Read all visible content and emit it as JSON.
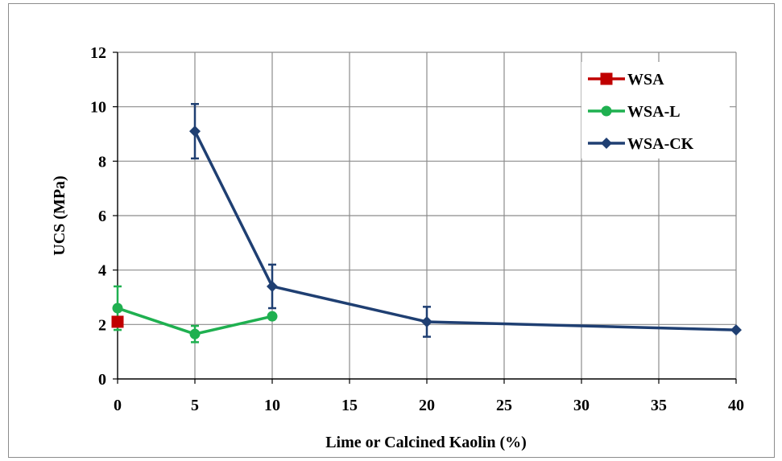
{
  "chart_data": {
    "type": "line",
    "xlabel": "Lime or Calcined Kaolin (%)",
    "ylabel": "UCS (MPa)",
    "xlim": [
      0,
      40
    ],
    "ylim": [
      0,
      12
    ],
    "x_ticks": [
      0,
      5,
      10,
      15,
      20,
      25,
      30,
      35,
      40
    ],
    "y_ticks": [
      0,
      2,
      4,
      6,
      8,
      10,
      12
    ],
    "grid": true,
    "legend": "top-right",
    "series": [
      {
        "name": "WSA",
        "color": "#c00000",
        "marker": "square",
        "x": [
          0
        ],
        "y": [
          2.1
        ],
        "err": [
          null
        ]
      },
      {
        "name": "WSA-L",
        "color": "#1fb050",
        "marker": "circle",
        "x": [
          0,
          5,
          10
        ],
        "y": [
          2.6,
          1.65,
          2.3
        ],
        "err": [
          0.8,
          0.3,
          null
        ]
      },
      {
        "name": "WSA-CK",
        "color": "#1f3f72",
        "marker": "diamond",
        "x": [
          5,
          10,
          20,
          40
        ],
        "y": [
          9.1,
          3.4,
          2.1,
          1.8
        ],
        "err": [
          1.0,
          0.8,
          0.55,
          null
        ]
      }
    ]
  }
}
